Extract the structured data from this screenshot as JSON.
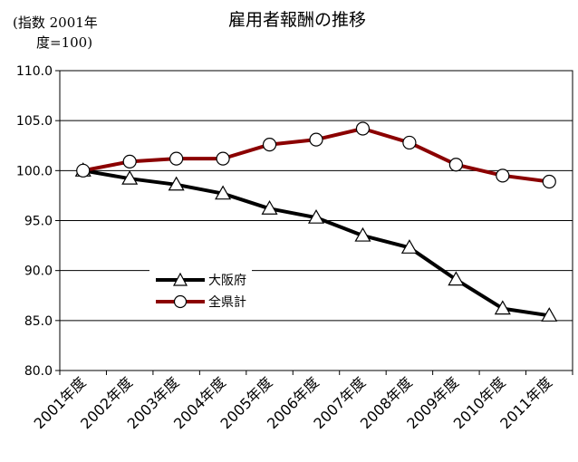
{
  "chart_data": {
    "type": "line",
    "title": "雇用者報酬の推移",
    "ylabel_line1": "(指数 2001年",
    "ylabel_line2": "度=100)",
    "categories": [
      "2001年度",
      "2002年度",
      "2003年度",
      "2004年度",
      "2005年度",
      "2006年度",
      "2007年度",
      "2008年度",
      "2009年度",
      "2010年度",
      "2011年度"
    ],
    "ylim": [
      80,
      110
    ],
    "yticks": [
      "110.0",
      "105.0",
      "100.0",
      "95.0",
      "90.0",
      "85.0",
      "80.0"
    ],
    "grid": true,
    "legend_placement": "bottom-left",
    "series": [
      {
        "name": "大阪府",
        "marker": "triangle",
        "color": "#000000",
        "values": [
          100.0,
          99.2,
          98.6,
          97.7,
          96.2,
          95.3,
          93.5,
          92.3,
          89.1,
          86.2,
          85.5
        ]
      },
      {
        "name": "全県計",
        "marker": "circle",
        "color": "#8b0000",
        "values": [
          100.0,
          100.9,
          101.2,
          101.2,
          102.6,
          103.1,
          104.2,
          102.8,
          100.6,
          99.5,
          98.9
        ]
      }
    ]
  }
}
